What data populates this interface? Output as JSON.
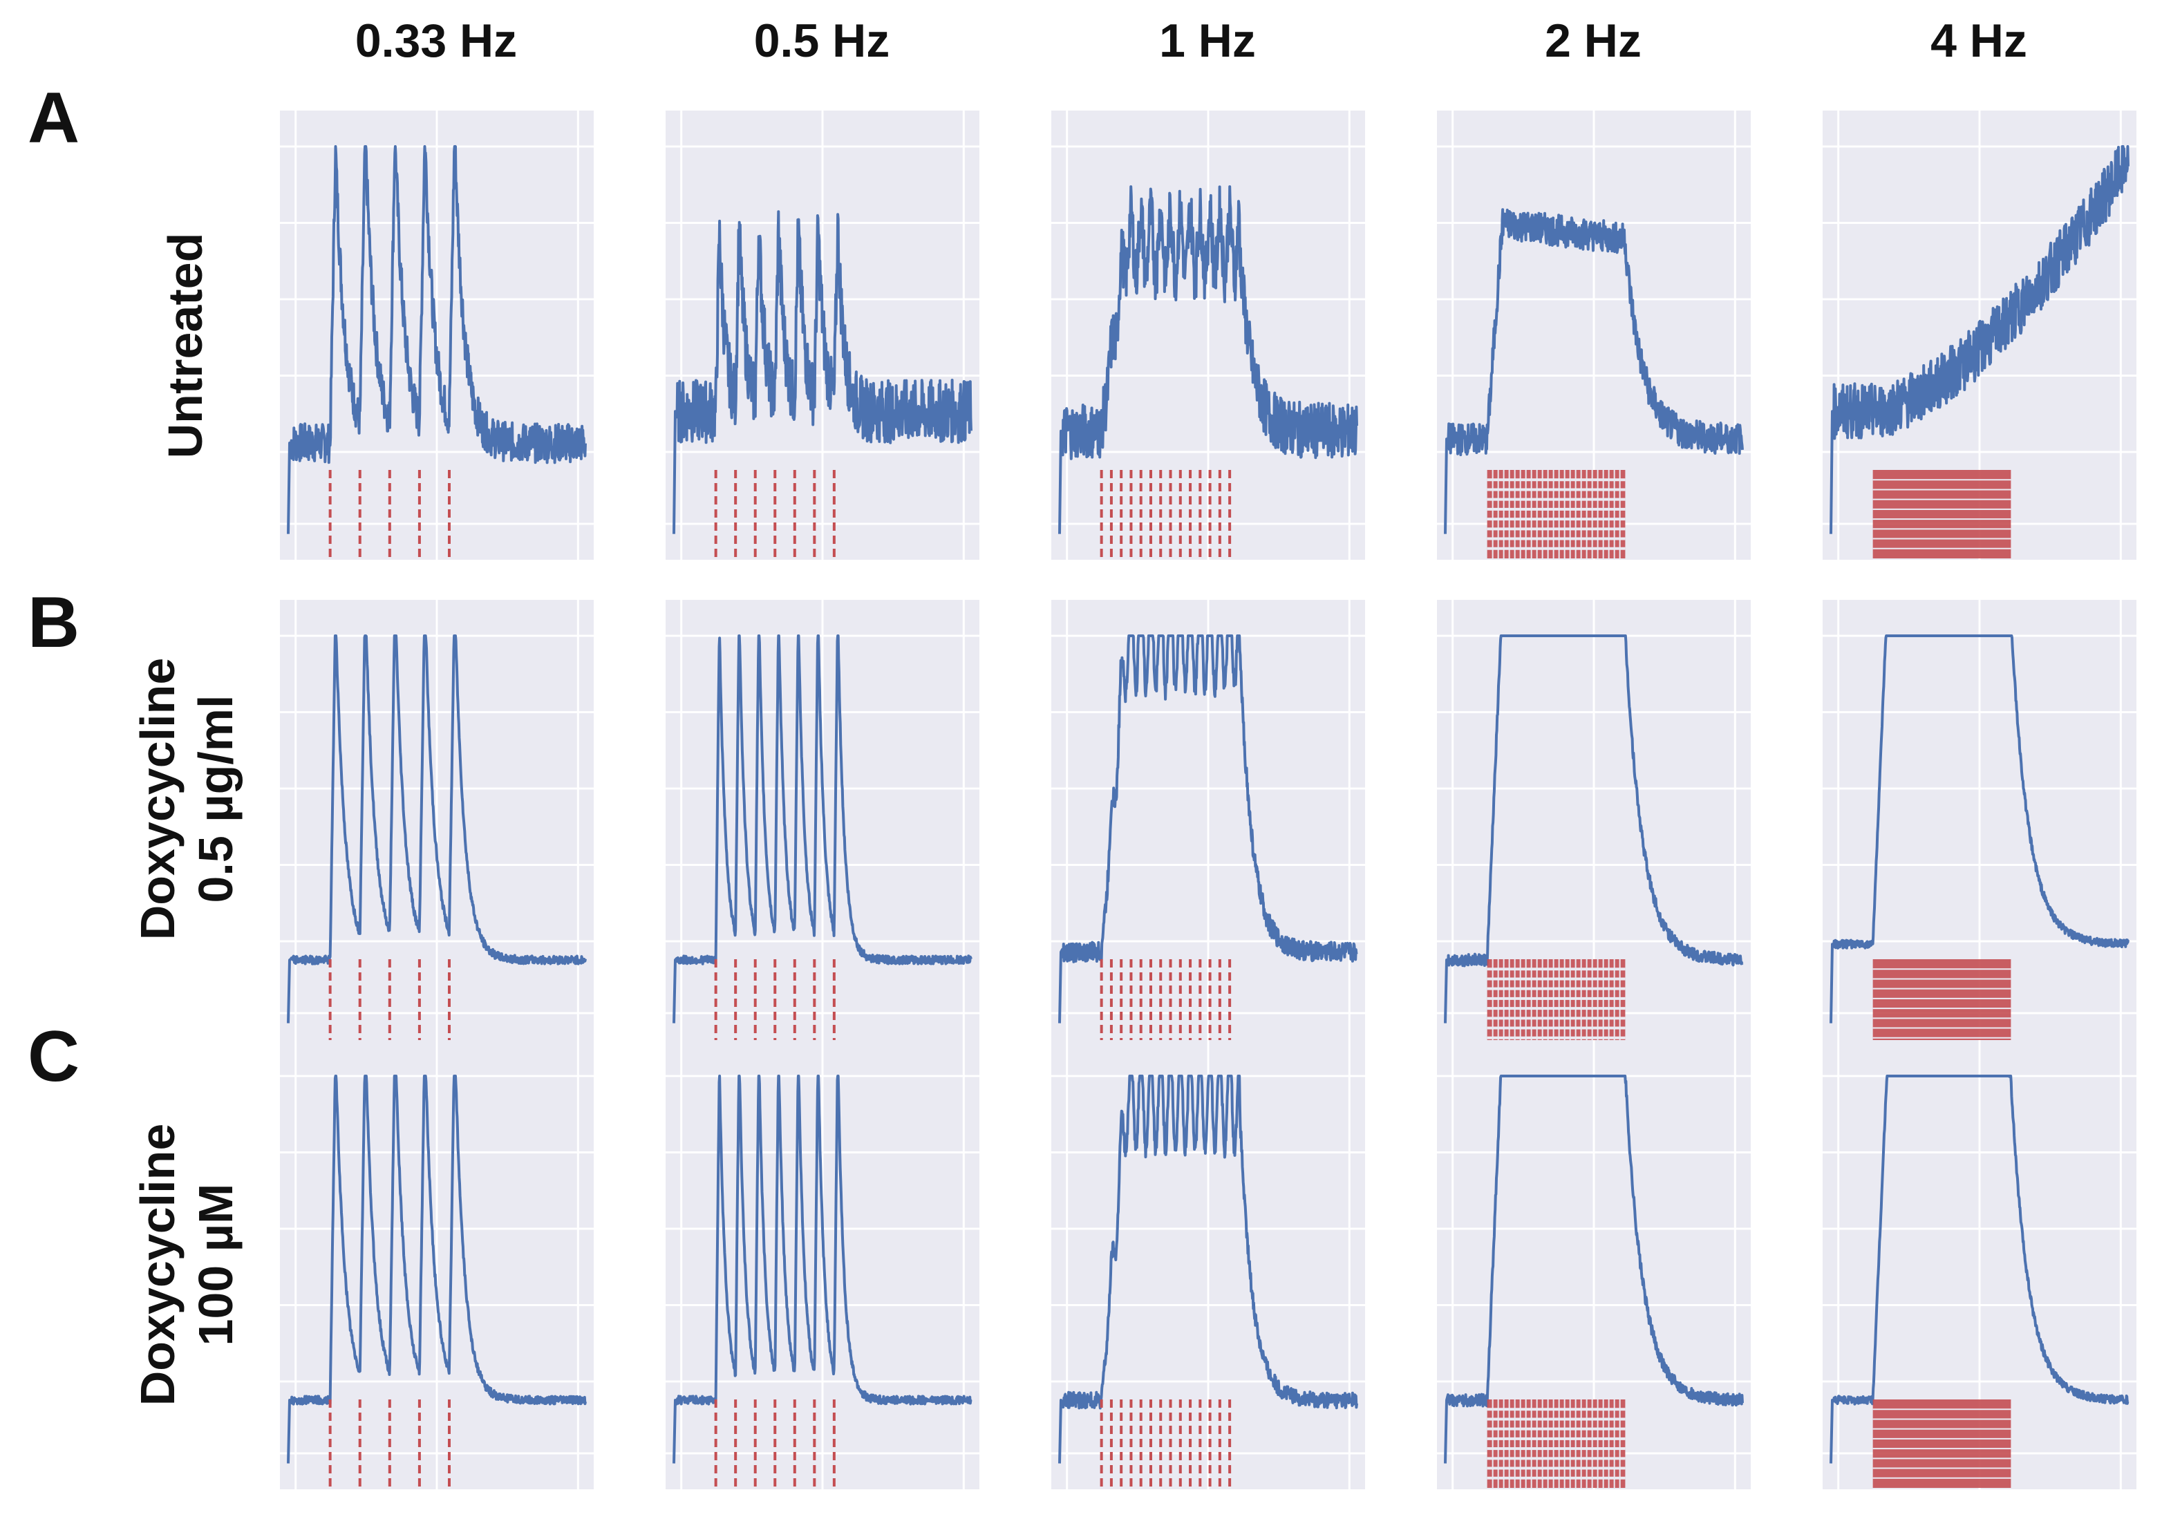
{
  "columns": [
    "0.33 Hz",
    "0.5 Hz",
    "1 Hz",
    "2 Hz",
    "4 Hz"
  ],
  "rows": [
    {
      "letter": "A",
      "label_lines": [
        "Untreated"
      ]
    },
    {
      "letter": "B",
      "label_lines": [
        "Doxycycline",
        "0.5 µg/ml"
      ]
    },
    {
      "letter": "C",
      "label_lines": [
        "Doxycycline",
        "100 µM"
      ]
    }
  ],
  "colors": {
    "panel_bg": "#eaeaf2",
    "grid": "#ffffff",
    "trace": "#4c72b0",
    "stim": "#c44e52"
  },
  "chart_data": [
    {
      "row": "A",
      "title": "0.33 Hz",
      "type": "line",
      "frequency_hz": 0.33,
      "pulses": 5,
      "pattern": "spikes",
      "amplitude": 0.75,
      "noise": 0.1,
      "baseline": 0.25,
      "xlim": [
        0,
        1
      ],
      "ylim": [
        0,
        1
      ]
    },
    {
      "row": "A",
      "title": "0.5 Hz",
      "type": "line",
      "frequency_hz": 0.5,
      "pulses": 7,
      "pattern": "spikes",
      "amplitude": 0.45,
      "noise": 0.16,
      "baseline": 0.33,
      "xlim": [
        0,
        1
      ],
      "ylim": [
        0,
        1
      ]
    },
    {
      "row": "A",
      "title": "1 Hz",
      "type": "line",
      "frequency_hz": 1,
      "pulses": 14,
      "pattern": "fused",
      "amplitude": 0.55,
      "noise": 0.14,
      "baseline": 0.28,
      "xlim": [
        0,
        1
      ],
      "ylim": [
        0,
        1
      ]
    },
    {
      "row": "A",
      "title": "2 Hz",
      "type": "line",
      "frequency_hz": 2,
      "pulses": 28,
      "pattern": "plateau",
      "amplitude": 0.55,
      "noise": 0.08,
      "baseline": 0.26,
      "xlim": [
        0,
        1
      ],
      "ylim": [
        0,
        1
      ]
    },
    {
      "row": "A",
      "title": "4 Hz",
      "type": "line",
      "frequency_hz": 4,
      "pulses": 56,
      "pattern": "rising",
      "amplitude": 0.85,
      "noise": 0.14,
      "baseline": 0.33,
      "xlim": [
        0,
        1
      ],
      "ylim": [
        0,
        1
      ]
    },
    {
      "row": "B",
      "title": "0.33 Hz",
      "type": "line",
      "frequency_hz": 0.33,
      "pulses": 5,
      "pattern": "spikes",
      "amplitude": 0.88,
      "noise": 0.02,
      "baseline": 0.18,
      "xlim": [
        0,
        1
      ],
      "ylim": [
        0,
        1
      ]
    },
    {
      "row": "B",
      "title": "0.5 Hz",
      "type": "line",
      "frequency_hz": 0.5,
      "pulses": 7,
      "pattern": "spikes",
      "amplitude": 0.85,
      "noise": 0.02,
      "baseline": 0.18,
      "xlim": [
        0,
        1
      ],
      "ylim": [
        0,
        1
      ]
    },
    {
      "row": "B",
      "title": "1 Hz",
      "type": "line",
      "frequency_hz": 1,
      "pulses": 14,
      "pattern": "fused",
      "amplitude": 0.92,
      "noise": 0.05,
      "baseline": 0.2,
      "xlim": [
        0,
        1
      ],
      "ylim": [
        0,
        1
      ]
    },
    {
      "row": "B",
      "title": "2 Hz",
      "type": "line",
      "frequency_hz": 2,
      "pulses": 28,
      "pattern": "plateau",
      "amplitude": 0.92,
      "noise": 0.03,
      "baseline": 0.18,
      "xlim": [
        0,
        1
      ],
      "ylim": [
        0,
        1
      ]
    },
    {
      "row": "B",
      "title": "4 Hz",
      "type": "line",
      "frequency_hz": 4,
      "pulses": 56,
      "pattern": "plateau",
      "amplitude": 0.92,
      "noise": 0.02,
      "baseline": 0.22,
      "xlim": [
        0,
        1
      ],
      "ylim": [
        0,
        1
      ]
    },
    {
      "row": "C",
      "title": "0.33 Hz",
      "type": "line",
      "frequency_hz": 0.33,
      "pulses": 5,
      "pattern": "spikes",
      "amplitude": 0.88,
      "noise": 0.02,
      "baseline": 0.18,
      "xlim": [
        0,
        1
      ],
      "ylim": [
        0,
        1
      ]
    },
    {
      "row": "C",
      "title": "0.5 Hz",
      "type": "line",
      "frequency_hz": 0.5,
      "pulses": 7,
      "pattern": "spikes",
      "amplitude": 0.85,
      "noise": 0.02,
      "baseline": 0.18,
      "xlim": [
        0,
        1
      ],
      "ylim": [
        0,
        1
      ]
    },
    {
      "row": "C",
      "title": "1 Hz",
      "type": "line",
      "frequency_hz": 1,
      "pulses": 14,
      "pattern": "fused",
      "amplitude": 0.88,
      "noise": 0.04,
      "baseline": 0.18,
      "xlim": [
        0,
        1
      ],
      "ylim": [
        0,
        1
      ]
    },
    {
      "row": "C",
      "title": "2 Hz",
      "type": "line",
      "frequency_hz": 2,
      "pulses": 28,
      "pattern": "plateau",
      "amplitude": 0.92,
      "noise": 0.03,
      "baseline": 0.18,
      "xlim": [
        0,
        1
      ],
      "ylim": [
        0,
        1
      ]
    },
    {
      "row": "C",
      "title": "4 Hz",
      "type": "line",
      "frequency_hz": 4,
      "pulses": 56,
      "pattern": "plateau",
      "amplitude": 0.9,
      "noise": 0.02,
      "baseline": 0.18,
      "xlim": [
        0,
        1
      ],
      "ylim": [
        0,
        1
      ]
    }
  ]
}
